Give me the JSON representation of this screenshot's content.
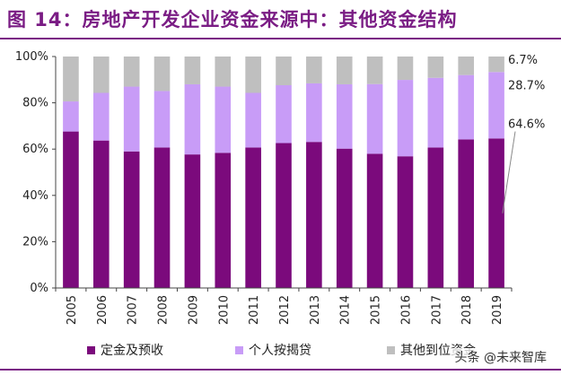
{
  "title": "图 14：房地产开发企业资金来源中：其他资金结构",
  "watermark": "头条 @未来智库",
  "chart_data": {
    "type": "bar",
    "stacked": true,
    "percent": true,
    "categories": [
      "2005",
      "2006",
      "2007",
      "2008",
      "2009",
      "2010",
      "2011",
      "2012",
      "2013",
      "2014",
      "2015",
      "2016",
      "2017",
      "2018",
      "2019"
    ],
    "series": [
      {
        "name": "定金及预收",
        "color": "#7b0a7c",
        "values": [
          67.6,
          63.7,
          59.0,
          60.7,
          57.7,
          58.4,
          60.7,
          62.6,
          63.1,
          60.2,
          58.0,
          56.9,
          60.7,
          64.2,
          64.6
        ]
      },
      {
        "name": "个人按揭贷",
        "color": "#c89cf7",
        "values": [
          13.0,
          20.6,
          28.0,
          24.4,
          30.3,
          28.6,
          23.6,
          25.0,
          25.3,
          27.8,
          30.1,
          33.0,
          30.1,
          27.8,
          28.7
        ]
      },
      {
        "name": "其他到位资金",
        "color": "#bfbfbf",
        "values": [
          19.4,
          15.7,
          13.0,
          14.9,
          12.0,
          13.0,
          15.7,
          12.4,
          11.6,
          12.0,
          11.9,
          10.1,
          9.2,
          8.0,
          6.7
        ]
      }
    ],
    "ylim": [
      0,
      100
    ],
    "yticks": [
      "0%",
      "20%",
      "40%",
      "60%",
      "80%",
      "100%"
    ],
    "annotations": [
      "6.7%",
      "28.7%",
      "64.6%"
    ],
    "grid": false,
    "legend": "bottom"
  }
}
